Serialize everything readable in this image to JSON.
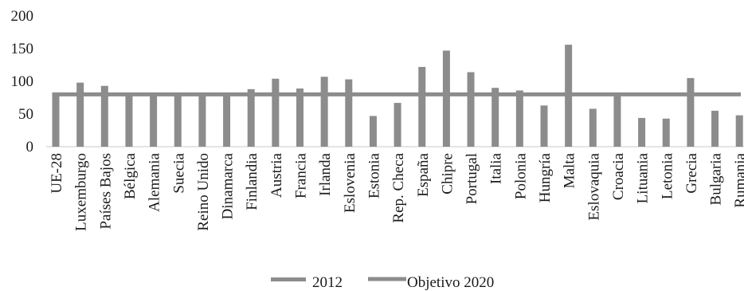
{
  "chart_data": {
    "type": "bar",
    "categories": [
      "UE-28",
      "Luxemburgo",
      "Países Bajos",
      "Bélgica",
      "Alemania",
      "Suecia",
      "Reino Unido",
      "Dinamarca",
      "Finlandia",
      "Austria",
      "Francia",
      "Irlanda",
      "Eslovenia",
      "Estonia",
      "Rep. Checa",
      "España",
      "Chipre",
      "Portugal",
      "Italia",
      "Polonia",
      "Hungría",
      "Malta",
      "Eslovaquia",
      "Croacia",
      "Lituania",
      "Letonia",
      "Grecia",
      "Bulgaria",
      "Rumania"
    ],
    "series": [
      {
        "name": "2012",
        "type": "bar",
        "color": "#8c8c8c",
        "values": [
          83,
          98,
          93,
          80,
          79,
          80,
          80,
          80,
          88,
          104,
          89,
          107,
          103,
          47,
          67,
          122,
          147,
          114,
          90,
          86,
          63,
          156,
          58,
          79,
          44,
          43,
          105,
          55,
          48
        ]
      },
      {
        "name": "Objetivo 2020",
        "type": "line",
        "color": "#8c8c8c",
        "value": 80
      }
    ],
    "y_ticks": [
      "0",
      "50",
      "100",
      "150",
      "200"
    ],
    "ylim": [
      0,
      200
    ],
    "grid": false,
    "legend": {
      "position": "bottom-center",
      "items": [
        "2012",
        "Objetivo 2020"
      ]
    }
  }
}
